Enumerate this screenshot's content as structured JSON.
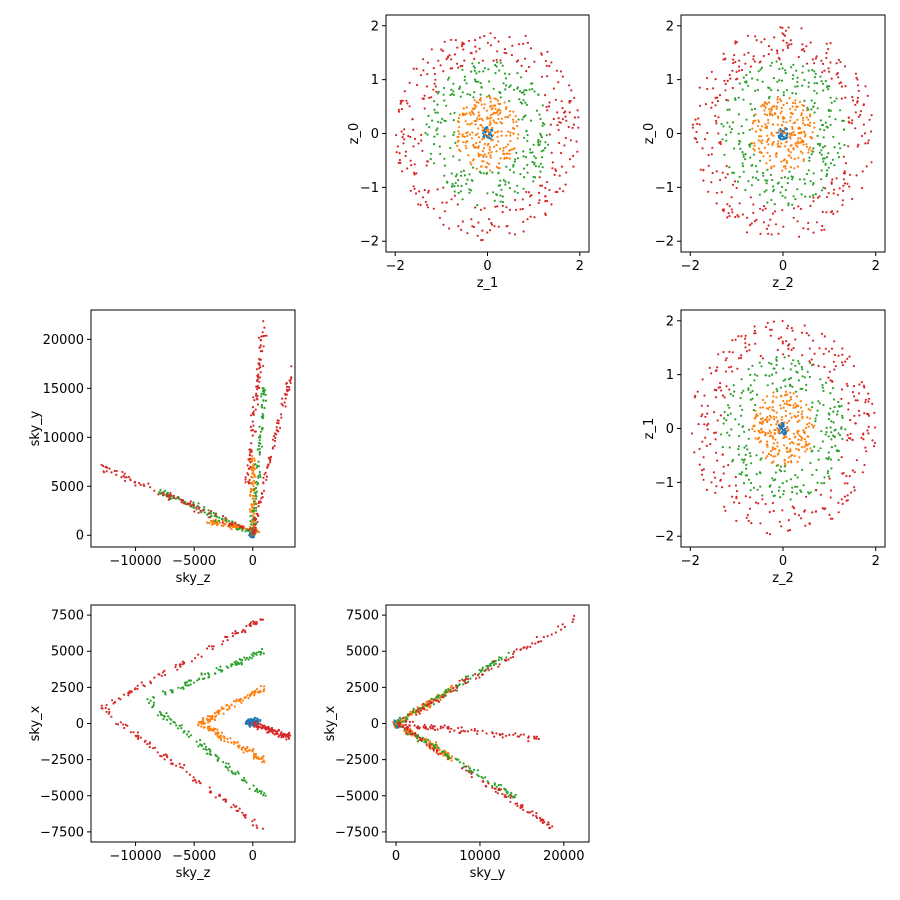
{
  "figure": {
    "layout": "3x3 corner scatter grid (upper and lower triangles populated)"
  },
  "colors": {
    "shell_0": "#1f77b4",
    "shell_1": "#ff7f0e",
    "shell_2": "#2ca02c",
    "shell_3": "#d62728",
    "axes_frame": "#000000",
    "background": "#ffffff"
  },
  "chart_data": [
    {
      "type": "scatter",
      "panel": "row1-col2",
      "xlabel": "z_1",
      "ylabel": "z_0",
      "xlim": [
        -2.2,
        2.2
      ],
      "ylim": [
        -2.2,
        2.2
      ],
      "xticks": [
        -2,
        0,
        2
      ],
      "yticks": [
        -2,
        -1,
        0,
        1,
        2
      ],
      "series": [
        {
          "color": "#1f77b4",
          "shape": "disk",
          "r_range": [
            0,
            0.12
          ]
        },
        {
          "color": "#ff7f0e",
          "shape": "disk",
          "r_range": [
            0,
            0.7
          ]
        },
        {
          "color": "#2ca02c",
          "shape": "ring",
          "r_range": [
            0.7,
            1.35
          ]
        },
        {
          "color": "#d62728",
          "shape": "ring",
          "r_range": [
            1.35,
            2.0
          ]
        }
      ]
    },
    {
      "type": "scatter",
      "panel": "row1-col3",
      "xlabel": "z_2",
      "ylabel": "z_0",
      "xlim": [
        -2.2,
        2.2
      ],
      "ylim": [
        -2.2,
        2.2
      ],
      "xticks": [
        -2,
        0,
        2
      ],
      "yticks": [
        -2,
        -1,
        0,
        1,
        2
      ],
      "series": [
        {
          "color": "#1f77b4",
          "shape": "disk",
          "r_range": [
            0,
            0.12
          ]
        },
        {
          "color": "#ff7f0e",
          "shape": "disk",
          "r_range": [
            0,
            0.7
          ]
        },
        {
          "color": "#2ca02c",
          "shape": "ring",
          "r_range": [
            0.7,
            1.35
          ]
        },
        {
          "color": "#d62728",
          "shape": "ring",
          "r_range": [
            1.35,
            2.0
          ]
        }
      ]
    },
    {
      "type": "scatter",
      "panel": "row2-col3",
      "xlabel": "z_2",
      "ylabel": "z_1",
      "xlim": [
        -2.2,
        2.2
      ],
      "ylim": [
        -2.2,
        2.2
      ],
      "xticks": [
        -2,
        0,
        2
      ],
      "yticks": [
        -2,
        -1,
        0,
        1,
        2
      ],
      "series": [
        {
          "color": "#1f77b4",
          "shape": "disk",
          "r_range": [
            0,
            0.12
          ]
        },
        {
          "color": "#ff7f0e",
          "shape": "disk",
          "r_range": [
            0,
            0.7
          ]
        },
        {
          "color": "#2ca02c",
          "shape": "ring",
          "r_range": [
            0.7,
            1.35
          ]
        },
        {
          "color": "#d62728",
          "shape": "ring",
          "r_range": [
            1.35,
            2.0
          ]
        }
      ]
    },
    {
      "type": "scatter",
      "panel": "row2-col1",
      "xlabel": "sky_z",
      "ylabel": "sky_y",
      "xlim": [
        -13800,
        3600
      ],
      "ylim": [
        -1200,
        23000
      ],
      "xticks": [
        -10000,
        -5000,
        0
      ],
      "yticks": [
        0,
        5000,
        10000,
        15000,
        20000
      ],
      "series": [
        {
          "color": "#1f77b4",
          "segments": [
            [
              [
                -100,
                0
              ],
              [
                100,
                500
              ]
            ]
          ]
        },
        {
          "color": "#ff7f0e",
          "segments": [
            [
              [
                -4000,
                1500
              ],
              [
                500,
                500
              ]
            ],
            [
              [
                0,
                0
              ],
              [
                0,
                8000
              ]
            ]
          ]
        },
        {
          "color": "#2ca02c",
          "segments": [
            [
              [
                -8000,
                4500
              ],
              [
                0,
                300
              ]
            ],
            [
              [
                0,
                0
              ],
              [
                1000,
                15000
              ]
            ]
          ]
        },
        {
          "color": "#d62728",
          "segments": [
            [
              [
                -13000,
                7000
              ],
              [
                0,
                300
              ]
            ],
            [
              [
                0,
                0
              ],
              [
                3300,
                17000
              ]
            ],
            [
              [
                -500,
                5000
              ],
              [
                1000,
                22000
              ]
            ]
          ]
        }
      ]
    },
    {
      "type": "scatter",
      "panel": "row3-col1",
      "xlabel": "sky_z",
      "ylabel": "sky_x",
      "xlim": [
        -13800,
        3600
      ],
      "ylim": [
        -8200,
        8200
      ],
      "xticks": [
        -10000,
        -5000,
        0
      ],
      "yticks": [
        -7500,
        -5000,
        -2500,
        0,
        2500,
        5000,
        7500
      ],
      "series": [
        {
          "color": "#1f77b4",
          "segments": [
            [
              [
                -500,
                0
              ],
              [
                500,
                200
              ]
            ]
          ]
        },
        {
          "color": "#ff7f0e",
          "segments": [
            [
              [
                -4500,
                0
              ],
              [
                1000,
                2500
              ]
            ],
            [
              [
                -4500,
                0
              ],
              [
                1000,
                -2500
              ]
            ]
          ]
        },
        {
          "color": "#2ca02c",
          "segments": [
            [
              [
                -9000,
                1500
              ],
              [
                1000,
                5000
              ]
            ],
            [
              [
                -9000,
                1500
              ],
              [
                1000,
                -5000
              ]
            ]
          ]
        },
        {
          "color": "#d62728",
          "segments": [
            [
              [
                -13000,
                1000
              ],
              [
                1000,
                7300
              ]
            ],
            [
              [
                -13000,
                1000
              ],
              [
                1000,
                -7300
              ]
            ],
            [
              [
                0,
                0
              ],
              [
                3300,
                -1000
              ]
            ]
          ]
        }
      ]
    },
    {
      "type": "scatter",
      "panel": "row3-col2",
      "xlabel": "sky_y",
      "ylabel": "sky_x",
      "xlim": [
        -1200,
        23000
      ],
      "ylim": [
        -8200,
        8200
      ],
      "xticks": [
        0,
        10000,
        20000
      ],
      "yticks": [
        -7500,
        -5000,
        -2500,
        0,
        2500,
        5000,
        7500
      ],
      "series": [
        {
          "color": "#1f77b4",
          "segments": [
            [
              [
                0,
                0
              ],
              [
                300,
                0
              ]
            ]
          ]
        },
        {
          "color": "#ff7f0e",
          "segments": [
            [
              [
                0,
                0
              ],
              [
                7000,
                2500
              ]
            ],
            [
              [
                0,
                0
              ],
              [
                7000,
                -2500
              ]
            ]
          ]
        },
        {
          "color": "#2ca02c",
          "segments": [
            [
              [
                0,
                0
              ],
              [
                14000,
                5000
              ]
            ],
            [
              [
                0,
                0
              ],
              [
                14000,
                -5000
              ]
            ]
          ]
        },
        {
          "color": "#d62728",
          "segments": [
            [
              [
                0,
                0
              ],
              [
                21500,
                7300
              ]
            ],
            [
              [
                0,
                0
              ],
              [
                19000,
                -7300
              ]
            ],
            [
              [
                0,
                0
              ],
              [
                17000,
                -1000
              ]
            ]
          ]
        }
      ]
    }
  ]
}
